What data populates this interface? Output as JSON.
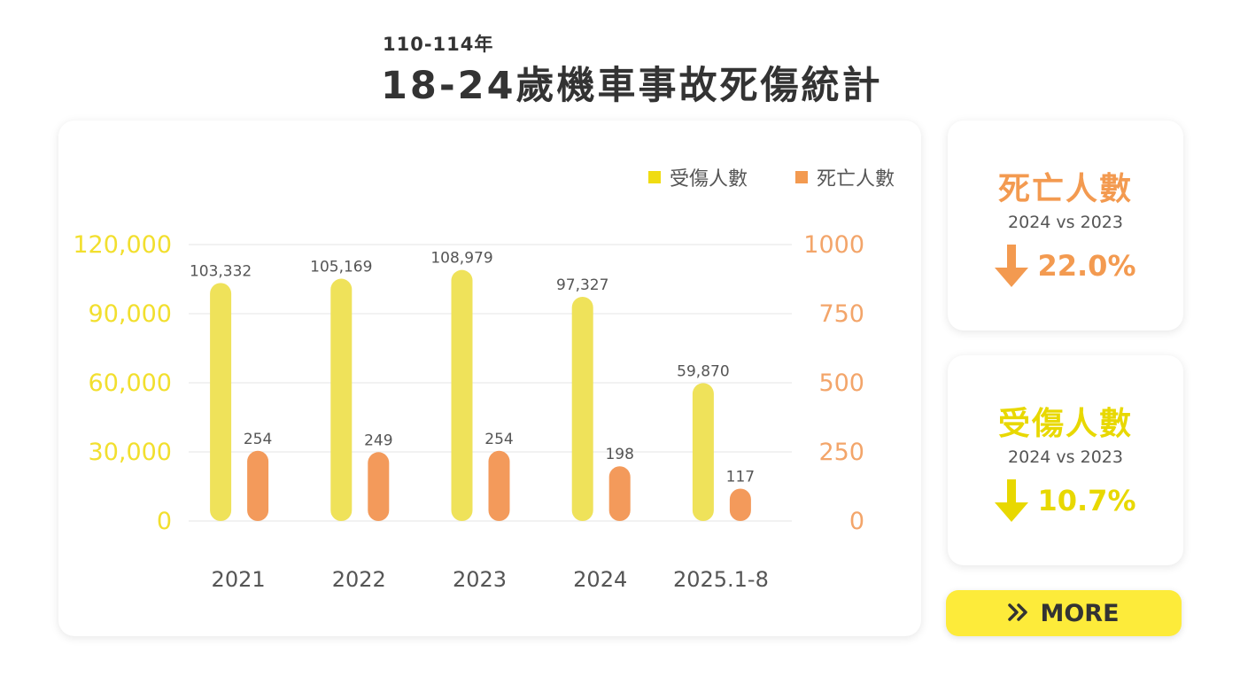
{
  "header": {
    "subtitle": "110-114年",
    "title": "18-24歲機車事故死傷統計"
  },
  "legend": {
    "injured_label": "受傷人數",
    "deaths_label": "死亡人數"
  },
  "colors": {
    "injured": "#efe25a",
    "deaths": "#f39a5b",
    "left_axis": "#f2df2e",
    "right_axis": "#f3a56a",
    "death_stat": "#f39a50",
    "injury_stat": "#e8d800",
    "more_button": "#fdeb3a"
  },
  "chart_data": {
    "type": "bar",
    "categories": [
      "2021",
      "2022",
      "2023",
      "2024",
      "2025.1-8"
    ],
    "series": [
      {
        "name": "受傷人數",
        "axis": "left",
        "values": [
          103332,
          105169,
          108979,
          97327,
          59870
        ],
        "labels": [
          "103,332",
          "105,169",
          "108,979",
          "97,327",
          "59,870"
        ]
      },
      {
        "name": "死亡人數",
        "axis": "right",
        "values": [
          254,
          249,
          254,
          198,
          117
        ],
        "labels": [
          "254",
          "249",
          "254",
          "198",
          "117"
        ]
      }
    ],
    "y_left": {
      "ticks": [
        "0",
        "30,000",
        "60,000",
        "90,000",
        "120,000"
      ],
      "ylim": [
        0,
        120000
      ]
    },
    "y_right": {
      "ticks": [
        "0",
        "250",
        "500",
        "750",
        "1000"
      ],
      "ylim": [
        0,
        1000
      ]
    },
    "legend_position": "top-right",
    "grid": true
  },
  "stats": [
    {
      "title": "死亡人數",
      "compare": "2024 vs 2023",
      "change": "22.0%",
      "direction": "down",
      "color_key": "death_stat"
    },
    {
      "title": "受傷人數",
      "compare": "2024 vs 2023",
      "change": "10.7%",
      "direction": "down",
      "color_key": "injury_stat"
    }
  ],
  "more_button": {
    "label": "MORE",
    "icon": "double-chevron-right-icon"
  }
}
